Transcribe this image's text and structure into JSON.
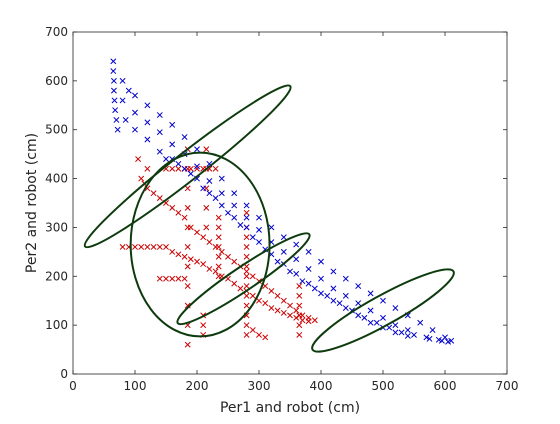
{
  "chart_data": {
    "type": "scatter",
    "title": "",
    "xlabel": "Per1 and robot (cm)",
    "ylabel": "Per2 and robot (cm)",
    "xlim": [
      0,
      700
    ],
    "ylim": [
      0,
      700
    ],
    "xticks": [
      0,
      100,
      200,
      300,
      400,
      500,
      600,
      700
    ],
    "yticks": [
      0,
      100,
      200,
      300,
      400,
      500,
      600,
      700
    ],
    "grid": false,
    "legend": "none",
    "marker": "x",
    "series": [
      {
        "color": "#0000cc",
        "points": [
          [
            65,
            640
          ],
          [
            65,
            620
          ],
          [
            66,
            600
          ],
          [
            66,
            580
          ],
          [
            67,
            560
          ],
          [
            68,
            540
          ],
          [
            70,
            520
          ],
          [
            72,
            500
          ],
          [
            80,
            600
          ],
          [
            90,
            580
          ],
          [
            100,
            570
          ],
          [
            120,
            550
          ],
          [
            140,
            530
          ],
          [
            160,
            510
          ],
          [
            180,
            485
          ],
          [
            200,
            460
          ],
          [
            220,
            430
          ],
          [
            240,
            400
          ],
          [
            260,
            370
          ],
          [
            280,
            345
          ],
          [
            300,
            320
          ],
          [
            320,
            300
          ],
          [
            340,
            280
          ],
          [
            360,
            265
          ],
          [
            380,
            250
          ],
          [
            400,
            230
          ],
          [
            420,
            210
          ],
          [
            440,
            195
          ],
          [
            460,
            180
          ],
          [
            480,
            165
          ],
          [
            500,
            150
          ],
          [
            520,
            135
          ],
          [
            540,
            120
          ],
          [
            560,
            105
          ],
          [
            580,
            90
          ],
          [
            600,
            75
          ],
          [
            610,
            68
          ],
          [
            590,
            70
          ],
          [
            570,
            75
          ],
          [
            80,
            560
          ],
          [
            100,
            535
          ],
          [
            120,
            515
          ],
          [
            140,
            495
          ],
          [
            160,
            470
          ],
          [
            180,
            450
          ],
          [
            200,
            425
          ],
          [
            220,
            395
          ],
          [
            240,
            370
          ],
          [
            260,
            345
          ],
          [
            280,
            320
          ],
          [
            300,
            295
          ],
          [
            320,
            270
          ],
          [
            340,
            250
          ],
          [
            360,
            235
          ],
          [
            380,
            215
          ],
          [
            400,
            195
          ],
          [
            420,
            175
          ],
          [
            440,
            160
          ],
          [
            460,
            145
          ],
          [
            480,
            130
          ],
          [
            500,
            115
          ],
          [
            520,
            100
          ],
          [
            540,
            90
          ],
          [
            85,
            520
          ],
          [
            100,
            500
          ],
          [
            120,
            480
          ],
          [
            140,
            455
          ],
          [
            160,
            440
          ],
          [
            180,
            420
          ],
          [
            200,
            400
          ],
          [
            220,
            370
          ],
          [
            240,
            345
          ],
          [
            260,
            320
          ],
          [
            280,
            300
          ],
          [
            300,
            270
          ],
          [
            320,
            245
          ],
          [
            340,
            225
          ],
          [
            360,
            205
          ],
          [
            380,
            185
          ],
          [
            400,
            165
          ],
          [
            420,
            150
          ],
          [
            440,
            135
          ],
          [
            460,
            120
          ],
          [
            480,
            105
          ],
          [
            500,
            95
          ],
          [
            520,
            85
          ],
          [
            540,
            78
          ],
          [
            150,
            440
          ],
          [
            170,
            430
          ],
          [
            190,
            410
          ],
          [
            210,
            380
          ],
          [
            230,
            360
          ],
          [
            250,
            330
          ],
          [
            270,
            305
          ],
          [
            290,
            280
          ],
          [
            310,
            255
          ],
          [
            330,
            230
          ],
          [
            350,
            210
          ],
          [
            370,
            190
          ],
          [
            390,
            175
          ],
          [
            410,
            160
          ],
          [
            430,
            145
          ],
          [
            450,
            130
          ],
          [
            470,
            115
          ],
          [
            490,
            105
          ],
          [
            510,
            95
          ],
          [
            530,
            85
          ],
          [
            550,
            80
          ],
          [
            575,
            72
          ],
          [
            595,
            68
          ],
          [
            605,
            66
          ]
        ]
      },
      {
        "color": "#cc0000",
        "points": [
          [
            110,
            400
          ],
          [
            115,
            390
          ],
          [
            120,
            380
          ],
          [
            130,
            370
          ],
          [
            140,
            360
          ],
          [
            150,
            350
          ],
          [
            160,
            340
          ],
          [
            170,
            330
          ],
          [
            180,
            320
          ],
          [
            190,
            300
          ],
          [
            200,
            290
          ],
          [
            210,
            280
          ],
          [
            220,
            270
          ],
          [
            230,
            260
          ],
          [
            240,
            250
          ],
          [
            250,
            240
          ],
          [
            260,
            230
          ],
          [
            270,
            220
          ],
          [
            280,
            210
          ],
          [
            290,
            200
          ],
          [
            300,
            190
          ],
          [
            310,
            180
          ],
          [
            320,
            170
          ],
          [
            330,
            160
          ],
          [
            340,
            150
          ],
          [
            350,
            140
          ],
          [
            360,
            130
          ],
          [
            370,
            120
          ],
          [
            380,
            115
          ],
          [
            390,
            110
          ],
          [
            160,
            250
          ],
          [
            170,
            245
          ],
          [
            180,
            240
          ],
          [
            190,
            235
          ],
          [
            200,
            230
          ],
          [
            210,
            225
          ],
          [
            220,
            215
          ],
          [
            230,
            210
          ],
          [
            240,
            200
          ],
          [
            250,
            195
          ],
          [
            260,
            185
          ],
          [
            270,
            175
          ],
          [
            280,
            170
          ],
          [
            290,
            160
          ],
          [
            300,
            150
          ],
          [
            310,
            145
          ],
          [
            320,
            135
          ],
          [
            330,
            130
          ],
          [
            340,
            125
          ],
          [
            350,
            120
          ],
          [
            360,
            115
          ],
          [
            370,
            110
          ],
          [
            380,
            108
          ],
          [
            80,
            260
          ],
          [
            90,
            260
          ],
          [
            100,
            260
          ],
          [
            110,
            260
          ],
          [
            120,
            260
          ],
          [
            130,
            260
          ],
          [
            140,
            260
          ],
          [
            150,
            260
          ],
          [
            185,
            460
          ],
          [
            185,
            420
          ],
          [
            185,
            380
          ],
          [
            185,
            340
          ],
          [
            185,
            300
          ],
          [
            185,
            260
          ],
          [
            185,
            220
          ],
          [
            185,
            180
          ],
          [
            185,
            140
          ],
          [
            185,
            100
          ],
          [
            185,
            60
          ],
          [
            150,
            420
          ],
          [
            160,
            420
          ],
          [
            170,
            420
          ],
          [
            180,
            420
          ],
          [
            190,
            420
          ],
          [
            200,
            420
          ],
          [
            210,
            420
          ],
          [
            220,
            420
          ],
          [
            230,
            420
          ],
          [
            215,
            460
          ],
          [
            215,
            420
          ],
          [
            215,
            380
          ],
          [
            215,
            340
          ],
          [
            215,
            300
          ],
          [
            280,
            330
          ],
          [
            280,
            300
          ],
          [
            280,
            280
          ],
          [
            280,
            260
          ],
          [
            280,
            240
          ],
          [
            280,
            220
          ],
          [
            280,
            200
          ],
          [
            280,
            180
          ],
          [
            280,
            160
          ],
          [
            280,
            140
          ],
          [
            280,
            120
          ],
          [
            280,
            100
          ],
          [
            280,
            80
          ],
          [
            235,
            320
          ],
          [
            235,
            300
          ],
          [
            235,
            280
          ],
          [
            235,
            260
          ],
          [
            235,
            240
          ],
          [
            235,
            220
          ],
          [
            235,
            200
          ],
          [
            365,
            180
          ],
          [
            365,
            160
          ],
          [
            365,
            140
          ],
          [
            365,
            120
          ],
          [
            365,
            100
          ],
          [
            365,
            80
          ],
          [
            140,
            195
          ],
          [
            150,
            195
          ],
          [
            160,
            195
          ],
          [
            170,
            195
          ],
          [
            180,
            195
          ],
          [
            210,
            120
          ],
          [
            210,
            100
          ],
          [
            210,
            80
          ],
          [
            290,
            90
          ],
          [
            300,
            80
          ],
          [
            310,
            75
          ],
          [
            120,
            420
          ],
          [
            105,
            440
          ]
        ]
      }
    ],
    "ellipses": [
      {
        "center": [
          185,
          425
        ],
        "semi_axes": [
          210,
          28
        ],
        "angle_deg": -38,
        "color": "#0e3b0e"
      },
      {
        "center": [
          205,
          265
        ],
        "semi_axes": [
          112,
          188
        ],
        "angle_deg": 0,
        "color": "#0e3b0e"
      },
      {
        "center": [
          275,
          195
        ],
        "semi_axes": [
          128,
          24
        ],
        "angle_deg": -34,
        "color": "#0e3b0e"
      },
      {
        "center": [
          500,
          130
        ],
        "semi_axes": [
          130,
          30
        ],
        "angle_deg": -29,
        "color": "#0e3b0e"
      }
    ]
  }
}
